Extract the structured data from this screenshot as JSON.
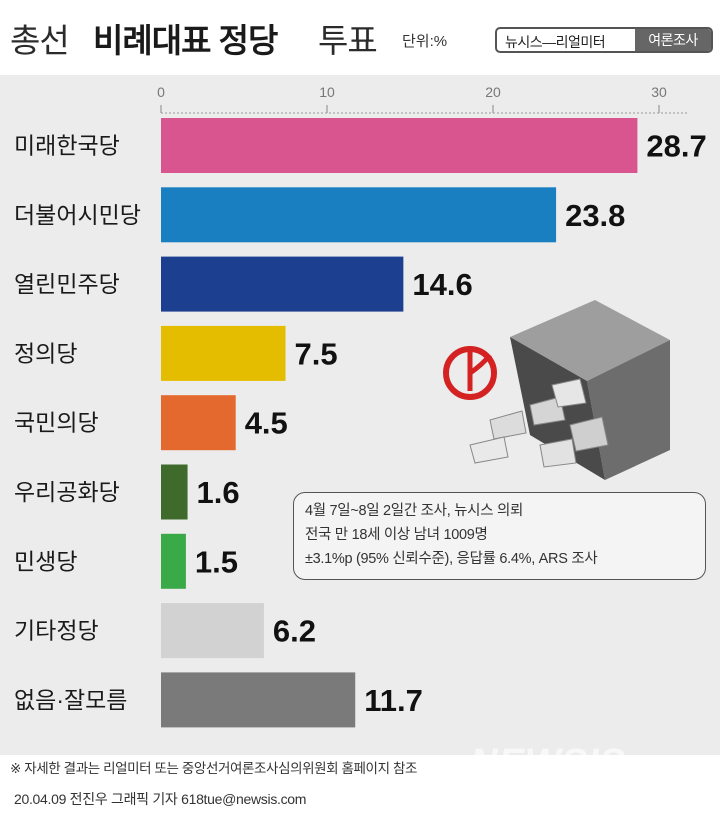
{
  "header": {
    "title_part1": "총선",
    "title_part2": "비례대표 정당",
    "title_part3": "투표",
    "unit": "단위:%",
    "source_left": "뉴시스—리얼미터",
    "source_right": "여론조사"
  },
  "note": {
    "line1": "4월 7일~8일 2일간 조사, 뉴시스 의뢰",
    "line2": "전국 만 18세 이상 남녀 1009명",
    "line3": "±3.1%p (95% 신뢰수준), 응답률 6.4%, ARS 조사"
  },
  "footnote": "※ 자세한 결과는 리얼미터 또는 중앙선거여론조사심의위원회 홈페이지 참조",
  "credit": "20.04.09 전진우 그래픽 기자 618tue@newsis.com",
  "watermark": "NEWSIS",
  "icons": [
    "ballot-box-icon",
    "vote-stamp-icon"
  ],
  "chart_data": {
    "type": "bar",
    "orientation": "horizontal",
    "title": "총선 비례대표 정당 투표",
    "unit": "%",
    "categories": [
      "미래한국당",
      "더불어시민당",
      "열린민주당",
      "정의당",
      "국민의당",
      "우리공화당",
      "민생당",
      "기타정당",
      "없음·잘모름"
    ],
    "values": [
      28.7,
      23.8,
      14.6,
      7.5,
      4.5,
      1.6,
      1.5,
      6.2,
      11.7
    ],
    "value_labels": [
      "28.7",
      "23.8",
      "14.6",
      "7.5",
      "4.5",
      "1.6",
      "1.5",
      "6.2",
      "11.7"
    ],
    "colors": [
      "#d9558f",
      "#1a7fc0",
      "#1d3f8f",
      "#e5bd00",
      "#e4692e",
      "#3e6b2c",
      "#3aaa49",
      "#d2d2d2",
      "#7a7a7a"
    ],
    "xticks": [
      0,
      10,
      20,
      30
    ],
    "xtick_labels": [
      "0",
      "10",
      "20",
      "30"
    ],
    "xlim": [
      0,
      30
    ],
    "grid": false,
    "legend": "none"
  }
}
